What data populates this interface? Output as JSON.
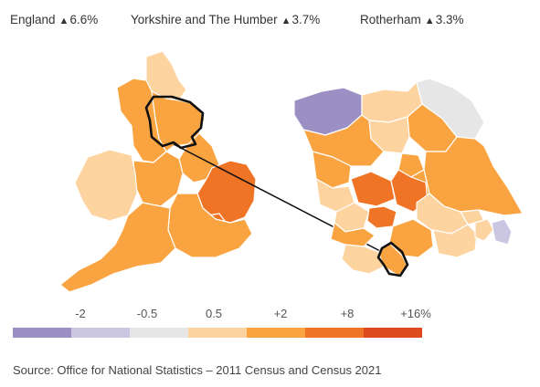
{
  "header": {
    "stats": [
      {
        "name": "England",
        "arrow": "▲",
        "value": "6.6%"
      },
      {
        "name": "Yorkshire and The Humber",
        "arrow": "▲",
        "value": "3.7%"
      },
      {
        "name": "Rotherham",
        "arrow": "▲",
        "value": "3.3%"
      }
    ]
  },
  "legend": {
    "labels": [
      "-2",
      "-0.5",
      "0.5",
      "+2",
      "+8",
      "+16%"
    ],
    "colors": [
      "#9b8fc4",
      "#cbc6e2",
      "#e6e6e6",
      "#fdd3a0",
      "#f9a441",
      "#ef7426",
      "#dc4a1e",
      "#ffffff"
    ]
  },
  "map_colors": {
    "decline_strong": "#9b8fc4",
    "decline_light": "#cbc6e2",
    "stable": "#e6e6e6",
    "growth_light": "#fdd3a0",
    "growth": "#f9a441",
    "growth_strong": "#ef7426",
    "outline": "#111111"
  },
  "footer": {
    "source": "Source: Office for National Statistics – 2011 Census and Census 2021"
  }
}
